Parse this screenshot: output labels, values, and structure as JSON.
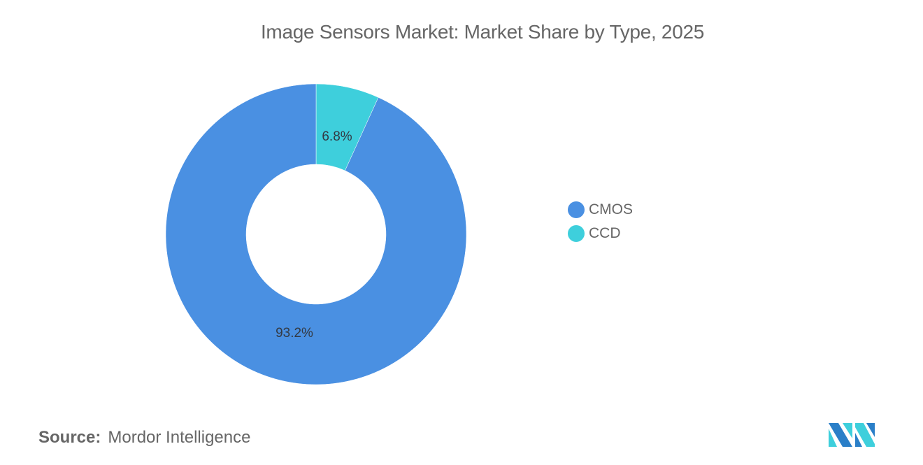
{
  "title": "Image Sensors Market: Market Share by Type, 2025",
  "legend": [
    {
      "label": "CMOS",
      "color": "#4a90e2"
    },
    {
      "label": "CCD",
      "color": "#3ecfdc"
    }
  ],
  "slices": [
    {
      "label": "CMOS",
      "value_label": "93.2%",
      "color": "#4a90e2"
    },
    {
      "label": "CCD",
      "value_label": "6.8%",
      "color": "#3ecfdc"
    }
  ],
  "source": {
    "label": "Source:",
    "text": "Mordor Intelligence"
  },
  "chart_data": {
    "type": "pie",
    "variant": "donut",
    "title": "Image Sensors Market: Market Share by Type, 2025",
    "categories": [
      "CMOS",
      "CCD"
    ],
    "values": [
      93.2,
      6.8
    ],
    "unit": "%",
    "colors": [
      "#4a90e2",
      "#3ecfdc"
    ],
    "legend_position": "right",
    "source": "Mordor Intelligence"
  }
}
